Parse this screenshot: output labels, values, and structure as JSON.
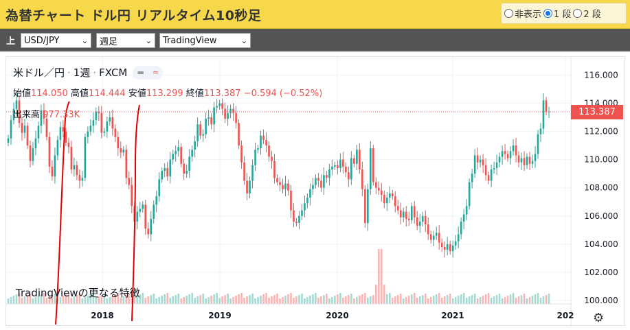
{
  "header": {
    "title": "為替チャート ドル円 リアルタイム10秒足"
  },
  "mode_options": [
    "非表示",
    "1 段",
    "2 段"
  ],
  "mode_selected": 1,
  "toolbar": {
    "label": "上",
    "pair": "USD/JPY",
    "period": "週足",
    "source": "TradingView"
  },
  "legend": {
    "symbol": "米ドル／円",
    "interval": "1週",
    "provider": "FXCM",
    "open_label": "始値",
    "open": "114.050",
    "high_label": "高値",
    "high": "114.444",
    "low_label": "安値",
    "low": "113.299",
    "close_label": "終値",
    "close": "113.387",
    "change": "−0.594 (−0.52%)",
    "volume_label": "出来高",
    "volume": "977.33K"
  },
  "watermark": "TradingViewの更なる特徴",
  "last_price": "113.387",
  "colors": {
    "up": "#26a69a",
    "down": "#ef5350",
    "annotation": "#e00000"
  },
  "chart_data": {
    "type": "candlestick",
    "y_ticks": [
      "116.000",
      "114.000",
      "112.000",
      "110.000",
      "108.000",
      "106.000",
      "104.000",
      "102.000",
      "100.000"
    ],
    "x_ticks": [
      "2018",
      "2019",
      "2020",
      "2021",
      "202"
    ],
    "ylim": [
      100,
      116.7
    ],
    "weekly_close": [
      111.5,
      112.8,
      113.6,
      114.2,
      112.6,
      111.9,
      112.4,
      111.0,
      109.9,
      110.8,
      111.5,
      112.4,
      113.5,
      112.9,
      111.6,
      109.5,
      108.8,
      110.3,
      111.4,
      112.3,
      112.0,
      111.2,
      110.9,
      109.3,
      109.6,
      108.9,
      108.5,
      108.7,
      111.6,
      112.0,
      112.4,
      112.8,
      113.4,
      113.3,
      111.9,
      112.0,
      112.7,
      113.0,
      112.2,
      111.6,
      110.8,
      110.5,
      110.7,
      108.7,
      108.2,
      106.7,
      105.6,
      106.3,
      106.5,
      106.8,
      105.1,
      104.7,
      105.8,
      106.8,
      107.4,
      108.6,
      109.2,
      109.4,
      108.8,
      110.0,
      110.4,
      110.6,
      110.9,
      109.7,
      109.0,
      109.2,
      110.2,
      110.7,
      111.3,
      112.5,
      111.7,
      111.8,
      112.9,
      113.0,
      112.5,
      113.7,
      113.8,
      114.0,
      113.6,
      112.9,
      113.3,
      113.6,
      113.3,
      112.6,
      111.0,
      109.8,
      108.5,
      107.6,
      108.5,
      109.6,
      110.7,
      110.8,
      111.7,
      111.4,
      111.0,
      110.2,
      109.9,
      108.7,
      108.4,
      108.2,
      107.9,
      108.3,
      107.8,
      106.4,
      105.6,
      105.5,
      106.0,
      106.4,
      106.9,
      107.3,
      107.9,
      108.2,
      108.7,
      108.5,
      108.0,
      108.9,
      108.7,
      109.3,
      109.5,
      109.6,
      109.4,
      110.0,
      109.5,
      109.1,
      108.6,
      110.1,
      109.7,
      110.7,
      109.3,
      107.9,
      105.5,
      107.9,
      110.8,
      108.4,
      108.0,
      107.8,
      107.5,
      106.9,
      107.3,
      107.6,
      107.4,
      106.7,
      106.4,
      105.9,
      106.3,
      105.8,
      105.7,
      106.7,
      105.9,
      105.3,
      105.6,
      106.0,
      105.4,
      104.7,
      104.3,
      104.6,
      104.8,
      104.1,
      103.8,
      103.6,
      104.0,
      103.5,
      103.9,
      104.2,
      104.7,
      105.6,
      106.1,
      106.7,
      108.4,
      109.0,
      110.3,
      109.8,
      110.0,
      109.6,
      108.9,
      108.5,
      109.3,
      109.4,
      109.8,
      110.2,
      110.6,
      110.4,
      110.1,
      110.6,
      111.0,
      110.3,
      109.8,
      110.1,
      109.6,
      110.2,
      109.7,
      109.9,
      110.4,
      111.8,
      112.2,
      114.2,
      113.4,
      113.4
    ]
  }
}
